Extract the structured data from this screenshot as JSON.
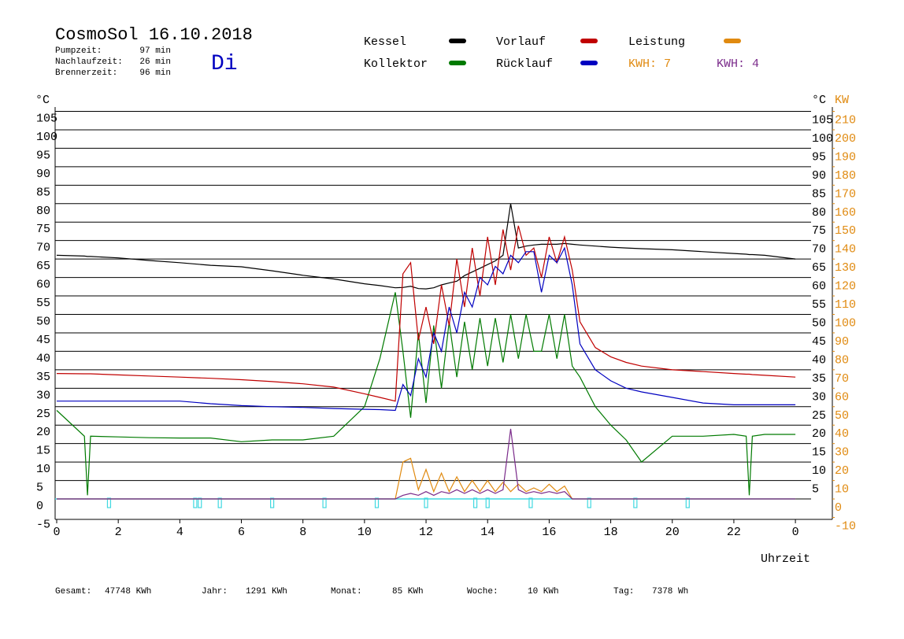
{
  "chart_data": {
    "type": "line",
    "title": "CosmoSol 16.10.2018",
    "weekday": "Di",
    "stats": [
      {
        "label": "Pumpzeit:",
        "value": "97 min"
      },
      {
        "label": "Nachlaufzeit:",
        "value": "26 min"
      },
      {
        "label": "Brennerzeit:",
        "value": "96 min"
      }
    ],
    "kwh_labels": [
      {
        "text": "KWH: 7",
        "color": "#e08a10"
      },
      {
        "text": "KWH: 4",
        "color": "#7a2a8a"
      }
    ],
    "y_label": "°C",
    "y2_label": "KW",
    "x_label": "Uhrzeit",
    "footer": [
      {
        "label": "Gesamt:",
        "value": "47748 KWh"
      },
      {
        "label": "Jahr:",
        "value": "1291 KWh"
      },
      {
        "label": "Monat:",
        "value": "85 KWh"
      },
      {
        "label": "Woche:",
        "value": "10 KWh"
      },
      {
        "label": "Tag:",
        "value": "7378 Wh"
      }
    ],
    "xlim": [
      0,
      25.2
    ],
    "xticks": [
      0,
      2,
      4,
      6,
      8,
      10,
      12,
      14,
      16,
      18,
      20,
      22,
      {
        "value": 24,
        "label": "0"
      }
    ],
    "ylim": [
      -5,
      105
    ],
    "yticks": [
      -5,
      0,
      5,
      10,
      15,
      20,
      25,
      30,
      35,
      40,
      45,
      50,
      55,
      60,
      65,
      70,
      75,
      80,
      85,
      90,
      95,
      100,
      105
    ],
    "yticks_right": [
      5,
      10,
      15,
      20,
      25,
      30,
      35,
      40,
      45,
      50,
      55,
      60,
      65,
      70,
      75,
      80,
      85,
      90,
      95,
      100,
      105
    ],
    "y2lim": [
      -10,
      210
    ],
    "y2ticks": [
      -10,
      0,
      10,
      20,
      30,
      40,
      50,
      60,
      70,
      80,
      90,
      100,
      110,
      120,
      130,
      140,
      150,
      160,
      170,
      180,
      190,
      200,
      210
    ],
    "grid": true,
    "x": [
      0,
      0.9,
      1,
      1.1,
      2,
      3,
      4,
      5,
      6,
      7,
      8,
      9,
      10,
      10.5,
      11,
      11.25,
      11.5,
      11.75,
      12,
      12.25,
      12.5,
      12.75,
      13,
      13.25,
      13.5,
      13.75,
      14,
      14.25,
      14.5,
      14.75,
      15,
      15.25,
      15.5,
      15.75,
      16,
      16.25,
      16.5,
      16.75,
      17,
      17.5,
      18,
      18.5,
      19,
      20,
      21,
      22,
      22.4,
      22.5,
      22.6,
      23,
      24
    ],
    "series": [
      {
        "name": "Kessel",
        "color": "#000000",
        "values": [
          66,
          65.8,
          65.7,
          65.7,
          65.3,
          64.6,
          64,
          63.3,
          62.9,
          61.8,
          60.6,
          59.6,
          58.3,
          57.8,
          57.2,
          57.3,
          57.6,
          57,
          56.9,
          57.2,
          58,
          58.5,
          59,
          60.5,
          61.5,
          62.5,
          63.5,
          64.5,
          66,
          80,
          68,
          68.5,
          68.8,
          69,
          69,
          69,
          69.2,
          69,
          68.8,
          68.5,
          68.2,
          68,
          67.8,
          67.5,
          67,
          66.5,
          66.3,
          66.2,
          66.2,
          66,
          65
        ]
      },
      {
        "name": "Kollektor",
        "color": "#007a00",
        "values": [
          24,
          17,
          1,
          17,
          16.8,
          16.6,
          16.5,
          16.5,
          15.5,
          16,
          16,
          17,
          25,
          38,
          56,
          40,
          22,
          45,
          26,
          47,
          30,
          48,
          33,
          48,
          35,
          49,
          36,
          49,
          37,
          50,
          38,
          50,
          40,
          40,
          50,
          38,
          50,
          36,
          33,
          25,
          20,
          16,
          10,
          17,
          17,
          17.5,
          17,
          1,
          17,
          17.5,
          17.5
        ]
      },
      {
        "name": "Vorlauf",
        "color": "#c00000",
        "values": [
          34,
          33.9,
          33.9,
          33.9,
          33.6,
          33.3,
          33,
          32.7,
          32.3,
          31.8,
          31.2,
          30.3,
          28.5,
          27.5,
          26.5,
          61,
          64,
          43,
          52,
          42,
          58,
          47,
          65,
          52,
          68,
          55,
          71,
          58,
          73,
          62,
          74,
          66,
          68,
          60,
          71,
          64,
          71,
          62,
          48,
          41,
          38.5,
          37,
          36,
          35,
          34.5,
          34,
          33.8,
          33.8,
          33.7,
          33.5,
          33
        ]
      },
      {
        "name": "Rücklauf",
        "color": "#0000c0",
        "values": [
          26.5,
          26.5,
          26.5,
          26.5,
          26.5,
          26.5,
          26.5,
          25.8,
          25.3,
          25,
          24.8,
          24.5,
          24.3,
          24.2,
          24,
          31,
          28,
          38,
          33,
          45,
          40,
          52,
          45,
          56,
          52,
          60,
          58,
          63,
          61,
          66,
          64,
          67,
          67,
          56,
          66,
          64,
          68,
          58,
          42,
          35,
          32,
          30,
          29,
          27.5,
          26,
          25.5,
          25.5,
          25.5,
          25.5,
          25.5,
          25.5
        ]
      },
      {
        "name": "Leistung",
        "color": "#e08a10",
        "axis": "y2",
        "values": [
          0,
          0,
          0,
          0,
          0,
          0,
          0,
          0,
          0,
          0,
          0,
          0,
          0,
          0,
          0,
          20,
          22,
          5,
          16,
          4,
          14,
          4,
          12,
          4,
          10,
          4,
          10,
          4,
          9,
          4,
          8,
          4,
          6,
          4,
          8,
          4,
          7,
          0,
          0,
          0,
          0,
          0,
          0,
          0,
          0,
          0,
          0,
          0,
          0,
          0,
          0
        ]
      },
      {
        "color": "#7a2a8a",
        "axis": "y2",
        "values": [
          0,
          0,
          0,
          0,
          0,
          0,
          0,
          0,
          0,
          0,
          0,
          0,
          0,
          0,
          0,
          2,
          3,
          2,
          4,
          2,
          4,
          3,
          5,
          3,
          5,
          3,
          5,
          3,
          5,
          38,
          5,
          3,
          4,
          3,
          4,
          3,
          4,
          0,
          0,
          0,
          0,
          0,
          0,
          0,
          0,
          0,
          0,
          0,
          0,
          0,
          0
        ]
      }
    ],
    "pump": {
      "color": "#40d8e0",
      "events": [
        1.7,
        4.5,
        4.65,
        5.3,
        7.0,
        8.7,
        10.4,
        12.0,
        13.6,
        14.0,
        15.4,
        17.3,
        18.8,
        20.5
      ]
    }
  }
}
